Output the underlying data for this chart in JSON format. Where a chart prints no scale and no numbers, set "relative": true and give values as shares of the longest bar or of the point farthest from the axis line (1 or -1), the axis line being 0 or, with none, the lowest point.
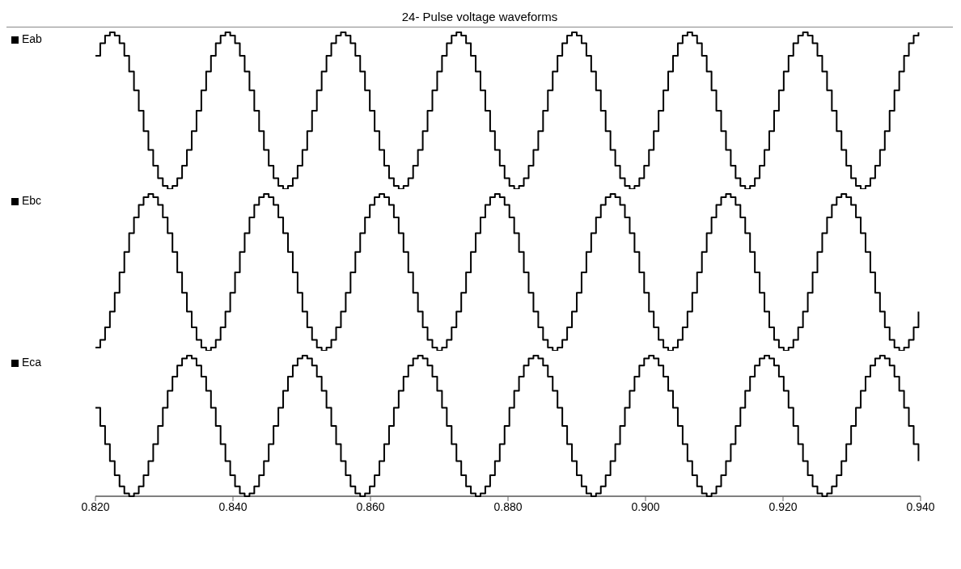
{
  "chart_data": [
    {
      "type": "step",
      "title": "24- Pulse voltage waveforms",
      "relative": true,
      "legend": "left",
      "tick_labels": false,
      "marker": "none",
      "xlim": [
        0.82,
        0.94
      ],
      "x": [
        0.82,
        0.8207,
        0.8214,
        0.8221,
        0.8228,
        0.8235,
        0.8242,
        0.8249,
        0.8256,
        0.8263,
        0.827,
        0.8277,
        0.8284,
        0.8291,
        0.8298,
        0.8305,
        0.8312,
        0.8319,
        0.8326,
        0.8333,
        0.834,
        0.8347,
        0.8354,
        0.8361,
        0.8368,
        0.8375,
        0.8382,
        0.8389,
        0.8396,
        0.8403,
        0.841,
        0.8417,
        0.8424,
        0.8431,
        0.8438,
        0.8445,
        0.8452,
        0.8459,
        0.8466,
        0.8473,
        0.848,
        0.8487,
        0.8494,
        0.8501,
        0.8508,
        0.8515,
        0.8522,
        0.8529,
        0.8536,
        0.8543,
        0.855,
        0.8557,
        0.8564,
        0.8571,
        0.8578,
        0.8585,
        0.8592,
        0.8599,
        0.8606,
        0.8613,
        0.862,
        0.8627,
        0.8634,
        0.8641,
        0.8648,
        0.8655,
        0.8662,
        0.8669,
        0.8676,
        0.8683,
        0.869,
        0.8697,
        0.8704,
        0.8711,
        0.8718,
        0.8725,
        0.8732,
        0.8739,
        0.8746,
        0.8753,
        0.876,
        0.8767,
        0.8774,
        0.8781,
        0.8788,
        0.8795,
        0.8802,
        0.8809,
        0.8816,
        0.8823,
        0.883,
        0.8837,
        0.8844,
        0.8851,
        0.8858,
        0.8865,
        0.8872,
        0.8879,
        0.8886,
        0.8893,
        0.89,
        0.8907,
        0.8914,
        0.8921,
        0.8928,
        0.8935,
        0.8942,
        0.8949,
        0.8956,
        0.8963,
        0.897,
        0.8977,
        0.8984,
        0.8991,
        0.8998,
        0.9005,
        0.9012,
        0.9019,
        0.9026,
        0.9033,
        0.904,
        0.9047,
        0.9054,
        0.9061,
        0.9068,
        0.9075,
        0.9082,
        0.9089,
        0.9096,
        0.9103,
        0.911,
        0.9117,
        0.9124,
        0.9131,
        0.9138,
        0.9145,
        0.9152,
        0.9159,
        0.9166,
        0.9173,
        0.918,
        0.9187,
        0.9194,
        0.9201,
        0.9208,
        0.9215,
        0.9222,
        0.9229,
        0.9236,
        0.9243,
        0.925,
        0.9257,
        0.9264,
        0.9271,
        0.9278,
        0.9285,
        0.9292,
        0.9299,
        0.9306,
        0.9313,
        0.932,
        0.9327,
        0.9334,
        0.9341,
        0.9348,
        0.9355,
        0.9362,
        0.9369,
        0.9376,
        0.9383,
        0.939,
        0.9397
      ],
      "series": [
        {
          "name": "Eab",
          "color": "#000000",
          "values": [
            0.85,
            0.93,
            0.98,
            1,
            0.98,
            0.93,
            0.85,
            0.75,
            0.63,
            0.5,
            0.37,
            0.25,
            0.15,
            0.07,
            0.02,
            0,
            0.02,
            0.07,
            0.15,
            0.25,
            0.37,
            0.5,
            0.63,
            0.75,
            0.85,
            0.93,
            0.98,
            1,
            0.98,
            0.93,
            0.85,
            0.75,
            0.63,
            0.5,
            0.37,
            0.25,
            0.15,
            0.07,
            0.02,
            0,
            0.02,
            0.07,
            0.15,
            0.25,
            0.37,
            0.5,
            0.63,
            0.75,
            0.85,
            0.93,
            0.98,
            1,
            0.98,
            0.93,
            0.85,
            0.75,
            0.63,
            0.5,
            0.37,
            0.25,
            0.15,
            0.07,
            0.02,
            0,
            0.02,
            0.07,
            0.15,
            0.25,
            0.37,
            0.5,
            0.63,
            0.75,
            0.85,
            0.93,
            0.98,
            1,
            0.98,
            0.93,
            0.85,
            0.75,
            0.63,
            0.5,
            0.37,
            0.25,
            0.15,
            0.07,
            0.02,
            0,
            0.02,
            0.07,
            0.15,
            0.25,
            0.37,
            0.5,
            0.63,
            0.75,
            0.85,
            0.93,
            0.98,
            1,
            0.98,
            0.93,
            0.85,
            0.75,
            0.63,
            0.5,
            0.37,
            0.25,
            0.15,
            0.07,
            0.02,
            0,
            0.02,
            0.07,
            0.15,
            0.25,
            0.37,
            0.5,
            0.63,
            0.75,
            0.85,
            0.93,
            0.98,
            1,
            0.98,
            0.93,
            0.85,
            0.75,
            0.63,
            0.5,
            0.37,
            0.25,
            0.15,
            0.07,
            0.02,
            0,
            0.02,
            0.07,
            0.15,
            0.25,
            0.37,
            0.5,
            0.63,
            0.75,
            0.85,
            0.93,
            0.98,
            1,
            0.98,
            0.93,
            0.85,
            0.75,
            0.63,
            0.5,
            0.37,
            0.25,
            0.15,
            0.07,
            0.02,
            0,
            0.02,
            0.07,
            0.15,
            0.25,
            0.37,
            0.5,
            0.63,
            0.75,
            0.85,
            0.93,
            0.98,
            1
          ]
        }
      ]
    },
    {
      "type": "step",
      "relative": true,
      "legend": "left",
      "tick_labels": false,
      "marker": "none",
      "xlim": [
        0.82,
        0.94
      ],
      "x": [
        0.82,
        0.8207,
        0.8214,
        0.8221,
        0.8228,
        0.8235,
        0.8242,
        0.8249,
        0.8256,
        0.8263,
        0.827,
        0.8277,
        0.8284,
        0.8291,
        0.8298,
        0.8305,
        0.8312,
        0.8319,
        0.8326,
        0.8333,
        0.834,
        0.8347,
        0.8354,
        0.8361,
        0.8368,
        0.8375,
        0.8382,
        0.8389,
        0.8396,
        0.8403,
        0.841,
        0.8417,
        0.8424,
        0.8431,
        0.8438,
        0.8445,
        0.8452,
        0.8459,
        0.8466,
        0.8473,
        0.848,
        0.8487,
        0.8494,
        0.8501,
        0.8508,
        0.8515,
        0.8522,
        0.8529,
        0.8536,
        0.8543,
        0.855,
        0.8557,
        0.8564,
        0.8571,
        0.8578,
        0.8585,
        0.8592,
        0.8599,
        0.8606,
        0.8613,
        0.862,
        0.8627,
        0.8634,
        0.8641,
        0.8648,
        0.8655,
        0.8662,
        0.8669,
        0.8676,
        0.8683,
        0.869,
        0.8697,
        0.8704,
        0.8711,
        0.8718,
        0.8725,
        0.8732,
        0.8739,
        0.8746,
        0.8753,
        0.876,
        0.8767,
        0.8774,
        0.8781,
        0.8788,
        0.8795,
        0.8802,
        0.8809,
        0.8816,
        0.8823,
        0.883,
        0.8837,
        0.8844,
        0.8851,
        0.8858,
        0.8865,
        0.8872,
        0.8879,
        0.8886,
        0.8893,
        0.89,
        0.8907,
        0.8914,
        0.8921,
        0.8928,
        0.8935,
        0.8942,
        0.8949,
        0.8956,
        0.8963,
        0.897,
        0.8977,
        0.8984,
        0.8991,
        0.8998,
        0.9005,
        0.9012,
        0.9019,
        0.9026,
        0.9033,
        0.904,
        0.9047,
        0.9054,
        0.9061,
        0.9068,
        0.9075,
        0.9082,
        0.9089,
        0.9096,
        0.9103,
        0.911,
        0.9117,
        0.9124,
        0.9131,
        0.9138,
        0.9145,
        0.9152,
        0.9159,
        0.9166,
        0.9173,
        0.918,
        0.9187,
        0.9194,
        0.9201,
        0.9208,
        0.9215,
        0.9222,
        0.9229,
        0.9236,
        0.9243,
        0.925,
        0.9257,
        0.9264,
        0.9271,
        0.9278,
        0.9285,
        0.9292,
        0.9299,
        0.9306,
        0.9313,
        0.932,
        0.9327,
        0.9334,
        0.9341,
        0.9348,
        0.9355,
        0.9362,
        0.9369,
        0.9376,
        0.9383,
        0.939,
        0.9397
      ],
      "series": [
        {
          "name": "Ebc",
          "color": "#000000",
          "values": [
            0.02,
            0.07,
            0.15,
            0.25,
            0.37,
            0.5,
            0.63,
            0.75,
            0.85,
            0.93,
            0.98,
            1,
            0.98,
            0.93,
            0.85,
            0.75,
            0.63,
            0.5,
            0.37,
            0.25,
            0.15,
            0.07,
            0.02,
            0,
            0.02,
            0.07,
            0.15,
            0.25,
            0.37,
            0.5,
            0.63,
            0.75,
            0.85,
            0.93,
            0.98,
            1,
            0.98,
            0.93,
            0.85,
            0.75,
            0.63,
            0.5,
            0.37,
            0.25,
            0.15,
            0.07,
            0.02,
            0,
            0.02,
            0.07,
            0.15,
            0.25,
            0.37,
            0.5,
            0.63,
            0.75,
            0.85,
            0.93,
            0.98,
            1,
            0.98,
            0.93,
            0.85,
            0.75,
            0.63,
            0.5,
            0.37,
            0.25,
            0.15,
            0.07,
            0.02,
            0,
            0.02,
            0.07,
            0.15,
            0.25,
            0.37,
            0.5,
            0.63,
            0.75,
            0.85,
            0.93,
            0.98,
            1,
            0.98,
            0.93,
            0.85,
            0.75,
            0.63,
            0.5,
            0.37,
            0.25,
            0.15,
            0.07,
            0.02,
            0,
            0.02,
            0.07,
            0.15,
            0.25,
            0.37,
            0.5,
            0.63,
            0.75,
            0.85,
            0.93,
            0.98,
            1,
            0.98,
            0.93,
            0.85,
            0.75,
            0.63,
            0.5,
            0.37,
            0.25,
            0.15,
            0.07,
            0.02,
            0,
            0.02,
            0.07,
            0.15,
            0.25,
            0.37,
            0.5,
            0.63,
            0.75,
            0.85,
            0.93,
            0.98,
            1,
            0.98,
            0.93,
            0.85,
            0.75,
            0.63,
            0.5,
            0.37,
            0.25,
            0.15,
            0.07,
            0.02,
            0,
            0.02,
            0.07,
            0.15,
            0.25,
            0.37,
            0.5,
            0.63,
            0.75,
            0.85,
            0.93,
            0.98,
            1,
            0.98,
            0.93,
            0.85,
            0.75,
            0.63,
            0.5,
            0.37,
            0.25,
            0.15,
            0.07,
            0.02,
            0,
            0.02,
            0.07,
            0.15,
            0.25
          ]
        }
      ]
    },
    {
      "type": "step",
      "relative": true,
      "legend": "left",
      "tick_labels": "x",
      "marker": "none",
      "xlim": [
        0.82,
        0.94
      ],
      "xticks": [
        {
          "value": 0.82,
          "label": "0.820"
        },
        {
          "value": 0.84,
          "label": "0.840"
        },
        {
          "value": 0.86,
          "label": "0.860"
        },
        {
          "value": 0.88,
          "label": "0.880"
        },
        {
          "value": 0.9,
          "label": "0.900"
        },
        {
          "value": 0.92,
          "label": "0.920"
        },
        {
          "value": 0.94,
          "label": "0.940"
        }
      ],
      "x": [
        0.82,
        0.8207,
        0.8214,
        0.8221,
        0.8228,
        0.8235,
        0.8242,
        0.8249,
        0.8256,
        0.8263,
        0.827,
        0.8277,
        0.8284,
        0.8291,
        0.8298,
        0.8305,
        0.8312,
        0.8319,
        0.8326,
        0.8333,
        0.834,
        0.8347,
        0.8354,
        0.8361,
        0.8368,
        0.8375,
        0.8382,
        0.8389,
        0.8396,
        0.8403,
        0.841,
        0.8417,
        0.8424,
        0.8431,
        0.8438,
        0.8445,
        0.8452,
        0.8459,
        0.8466,
        0.8473,
        0.848,
        0.8487,
        0.8494,
        0.8501,
        0.8508,
        0.8515,
        0.8522,
        0.8529,
        0.8536,
        0.8543,
        0.855,
        0.8557,
        0.8564,
        0.8571,
        0.8578,
        0.8585,
        0.8592,
        0.8599,
        0.8606,
        0.8613,
        0.862,
        0.8627,
        0.8634,
        0.8641,
        0.8648,
        0.8655,
        0.8662,
        0.8669,
        0.8676,
        0.8683,
        0.869,
        0.8697,
        0.8704,
        0.8711,
        0.8718,
        0.8725,
        0.8732,
        0.8739,
        0.8746,
        0.8753,
        0.876,
        0.8767,
        0.8774,
        0.8781,
        0.8788,
        0.8795,
        0.8802,
        0.8809,
        0.8816,
        0.8823,
        0.883,
        0.8837,
        0.8844,
        0.8851,
        0.8858,
        0.8865,
        0.8872,
        0.8879,
        0.8886,
        0.8893,
        0.89,
        0.8907,
        0.8914,
        0.8921,
        0.8928,
        0.8935,
        0.8942,
        0.8949,
        0.8956,
        0.8963,
        0.897,
        0.8977,
        0.8984,
        0.8991,
        0.8998,
        0.9005,
        0.9012,
        0.9019,
        0.9026,
        0.9033,
        0.904,
        0.9047,
        0.9054,
        0.9061,
        0.9068,
        0.9075,
        0.9082,
        0.9089,
        0.9096,
        0.9103,
        0.911,
        0.9117,
        0.9124,
        0.9131,
        0.9138,
        0.9145,
        0.9152,
        0.9159,
        0.9166,
        0.9173,
        0.918,
        0.9187,
        0.9194,
        0.9201,
        0.9208,
        0.9215,
        0.9222,
        0.9229,
        0.9236,
        0.9243,
        0.925,
        0.9257,
        0.9264,
        0.9271,
        0.9278,
        0.9285,
        0.9292,
        0.9299,
        0.9306,
        0.9313,
        0.932,
        0.9327,
        0.9334,
        0.9341,
        0.9348,
        0.9355,
        0.9362,
        0.9369,
        0.9376,
        0.9383,
        0.939,
        0.9397
      ],
      "series": [
        {
          "name": "Eca",
          "color": "#000000",
          "values": [
            0.63,
            0.5,
            0.37,
            0.25,
            0.15,
            0.07,
            0.02,
            0,
            0.02,
            0.07,
            0.15,
            0.25,
            0.37,
            0.5,
            0.63,
            0.75,
            0.85,
            0.93,
            0.98,
            1,
            0.98,
            0.93,
            0.85,
            0.75,
            0.63,
            0.5,
            0.37,
            0.25,
            0.15,
            0.07,
            0.02,
            0,
            0.02,
            0.07,
            0.15,
            0.25,
            0.37,
            0.5,
            0.63,
            0.75,
            0.85,
            0.93,
            0.98,
            1,
            0.98,
            0.93,
            0.85,
            0.75,
            0.63,
            0.5,
            0.37,
            0.25,
            0.15,
            0.07,
            0.02,
            0,
            0.02,
            0.07,
            0.15,
            0.25,
            0.37,
            0.5,
            0.63,
            0.75,
            0.85,
            0.93,
            0.98,
            1,
            0.98,
            0.93,
            0.85,
            0.75,
            0.63,
            0.5,
            0.37,
            0.25,
            0.15,
            0.07,
            0.02,
            0,
            0.02,
            0.07,
            0.15,
            0.25,
            0.37,
            0.5,
            0.63,
            0.75,
            0.85,
            0.93,
            0.98,
            1,
            0.98,
            0.93,
            0.85,
            0.75,
            0.63,
            0.5,
            0.37,
            0.25,
            0.15,
            0.07,
            0.02,
            0,
            0.02,
            0.07,
            0.15,
            0.25,
            0.37,
            0.5,
            0.63,
            0.75,
            0.85,
            0.93,
            0.98,
            1,
            0.98,
            0.93,
            0.85,
            0.75,
            0.63,
            0.5,
            0.37,
            0.25,
            0.15,
            0.07,
            0.02,
            0,
            0.02,
            0.07,
            0.15,
            0.25,
            0.37,
            0.5,
            0.63,
            0.75,
            0.85,
            0.93,
            0.98,
            1,
            0.98,
            0.93,
            0.85,
            0.75,
            0.63,
            0.5,
            0.37,
            0.25,
            0.15,
            0.07,
            0.02,
            0,
            0.02,
            0.07,
            0.15,
            0.25,
            0.37,
            0.5,
            0.63,
            0.75,
            0.85,
            0.93,
            0.98,
            1,
            0.98,
            0.93,
            0.85,
            0.75,
            0.63,
            0.5,
            0.37,
            0.25
          ]
        }
      ]
    }
  ]
}
